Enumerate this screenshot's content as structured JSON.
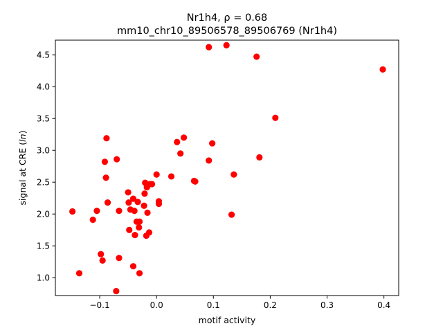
{
  "chart_data": {
    "type": "scatter",
    "title_line1": "Nr1h4, ρ = 0.68",
    "title_line2": "mm10_chr10_89506578_89506769 (Nr1h4)",
    "xlabel": "motif activity",
    "ylabel": "signal at CRE (ln)",
    "xlim": [
      -0.178,
      0.426
    ],
    "ylim": [
      0.72,
      4.73
    ],
    "xticks": [
      -0.1,
      0.0,
      0.1,
      0.2,
      0.3,
      0.4
    ],
    "xtick_labels": [
      "−0.1",
      "0.0",
      "0.1",
      "0.2",
      "0.3",
      "0.4"
    ],
    "yticks": [
      1.0,
      1.5,
      2.0,
      2.5,
      3.0,
      3.5,
      4.0,
      4.5
    ],
    "ytick_labels": [
      "1.0",
      "1.5",
      "2.0",
      "2.5",
      "3.0",
      "3.5",
      "4.0",
      "4.5"
    ],
    "grid": false,
    "marker_color": "#ff0000",
    "points": [
      {
        "x": -0.148,
        "y": 2.04
      },
      {
        "x": -0.136,
        "y": 1.07
      },
      {
        "x": -0.112,
        "y": 1.91
      },
      {
        "x": -0.105,
        "y": 2.05
      },
      {
        "x": -0.098,
        "y": 1.37
      },
      {
        "x": -0.095,
        "y": 1.27
      },
      {
        "x": -0.091,
        "y": 2.82
      },
      {
        "x": -0.089,
        "y": 2.57
      },
      {
        "x": -0.088,
        "y": 3.19
      },
      {
        "x": -0.086,
        "y": 2.18
      },
      {
        "x": -0.071,
        "y": 0.79
      },
      {
        "x": -0.07,
        "y": 2.86
      },
      {
        "x": -0.066,
        "y": 2.05
      },
      {
        "x": -0.066,
        "y": 1.31
      },
      {
        "x": -0.05,
        "y": 2.34
      },
      {
        "x": -0.049,
        "y": 2.18
      },
      {
        "x": -0.048,
        "y": 1.75
      },
      {
        "x": -0.046,
        "y": 2.07
      },
      {
        "x": -0.041,
        "y": 1.18
      },
      {
        "x": -0.041,
        "y": 2.24
      },
      {
        "x": -0.039,
        "y": 2.05
      },
      {
        "x": -0.038,
        "y": 1.67
      },
      {
        "x": -0.035,
        "y": 1.88
      },
      {
        "x": -0.033,
        "y": 2.19
      },
      {
        "x": -0.031,
        "y": 1.79
      },
      {
        "x": -0.03,
        "y": 1.88
      },
      {
        "x": -0.03,
        "y": 1.07
      },
      {
        "x": -0.022,
        "y": 2.13
      },
      {
        "x": -0.021,
        "y": 2.32
      },
      {
        "x": -0.02,
        "y": 2.49
      },
      {
        "x": -0.018,
        "y": 1.66
      },
      {
        "x": -0.017,
        "y": 2.42
      },
      {
        "x": -0.016,
        "y": 2.02
      },
      {
        "x": -0.013,
        "y": 1.71
      },
      {
        "x": -0.012,
        "y": 2.47
      },
      {
        "x": -0.008,
        "y": 2.47
      },
      {
        "x": 0.0,
        "y": 2.62
      },
      {
        "x": 0.004,
        "y": 2.2
      },
      {
        "x": 0.004,
        "y": 2.16
      },
      {
        "x": 0.026,
        "y": 2.59
      },
      {
        "x": 0.036,
        "y": 3.13
      },
      {
        "x": 0.042,
        "y": 2.95
      },
      {
        "x": 0.048,
        "y": 3.2
      },
      {
        "x": 0.066,
        "y": 2.52
      },
      {
        "x": 0.068,
        "y": 2.51
      },
      {
        "x": 0.092,
        "y": 2.84
      },
      {
        "x": 0.092,
        "y": 4.62
      },
      {
        "x": 0.098,
        "y": 3.11
      },
      {
        "x": 0.123,
        "y": 4.65
      },
      {
        "x": 0.132,
        "y": 1.99
      },
      {
        "x": 0.136,
        "y": 2.62
      },
      {
        "x": 0.176,
        "y": 4.47
      },
      {
        "x": 0.181,
        "y": 2.89
      },
      {
        "x": 0.209,
        "y": 3.51
      },
      {
        "x": 0.398,
        "y": 4.27
      }
    ]
  }
}
